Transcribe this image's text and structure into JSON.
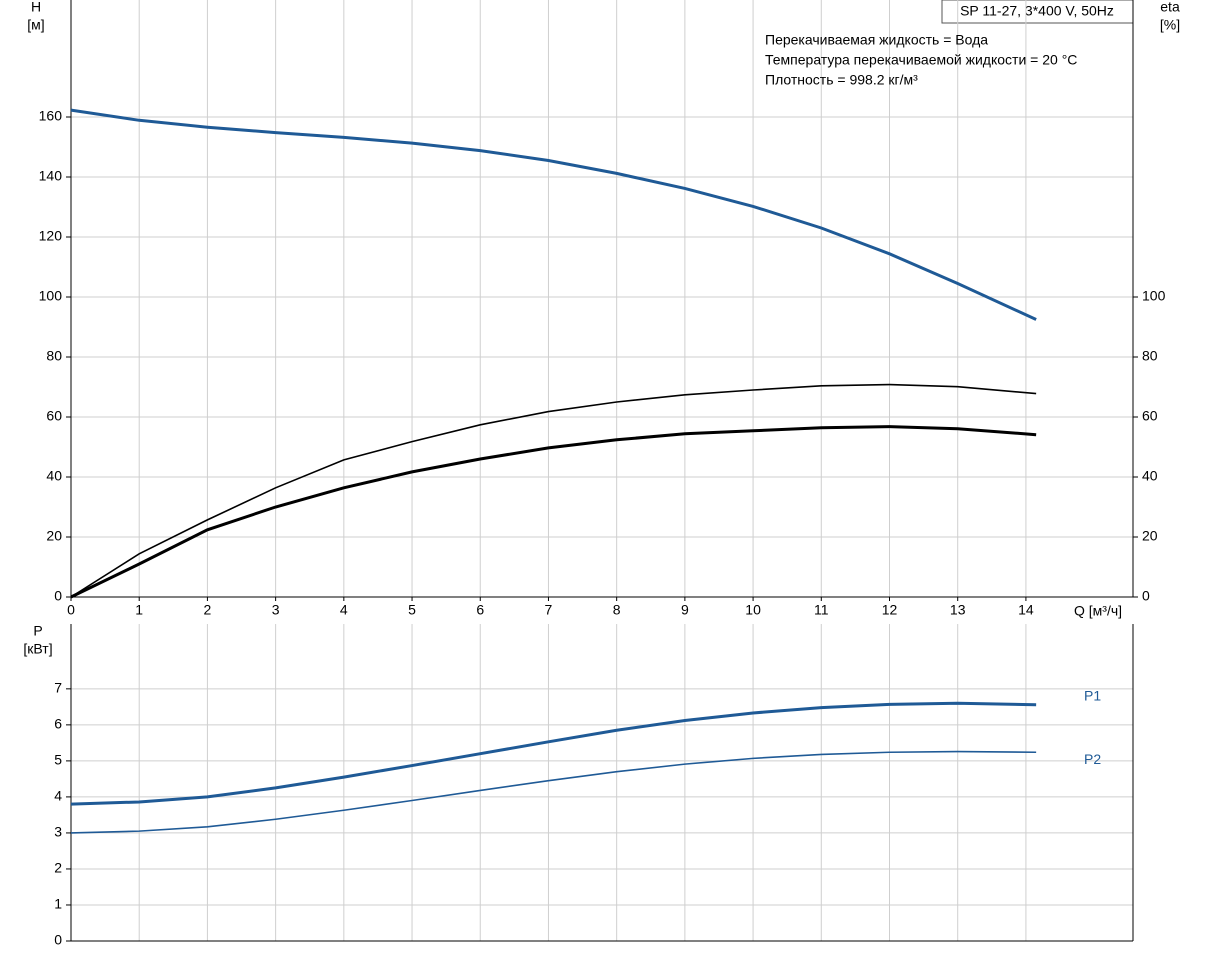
{
  "chart_data": [
    {
      "type": "line",
      "y_label": "H",
      "y_unit": "[м]",
      "y2_label": "eta",
      "y2_unit": "[%]",
      "x_label": "Q [м³/ч]",
      "title": "SP 11-27, 3*400 V, 50Hz",
      "annotations": [
        "Перекачиваемая жидкость = Вода",
        "Температура перекачиваемой жидкости = 20 °C",
        "Плотность = 998.2 кг/м³"
      ],
      "xlim": [
        0,
        15.57
      ],
      "xticks": [
        0,
        1,
        2,
        3,
        4,
        5,
        6,
        7,
        8,
        9,
        10,
        11,
        12,
        13,
        14
      ],
      "ylim": [
        0,
        199
      ],
      "yticks": [
        0,
        20,
        40,
        60,
        80,
        100,
        120,
        140,
        160
      ],
      "y2lim": [
        0,
        199
      ],
      "y2ticks": [
        0,
        20,
        40,
        60,
        80,
        100
      ],
      "grid": true,
      "series": [
        {
          "color": "#1f5a96",
          "line_width": 3,
          "x": [
            0,
            1,
            2,
            3,
            4,
            5,
            6,
            7,
            8,
            9,
            10,
            11,
            12,
            13,
            14.15
          ],
          "values": [
            162.3,
            158.9,
            156.6,
            154.8,
            153.2,
            151.3,
            148.8,
            145.5,
            141.2,
            136.2,
            130.2,
            123,
            114.4,
            104.5,
            92.5
          ]
        },
        {
          "color": "#000000",
          "line_width": 1.6,
          "axis": "y2",
          "x": [
            0,
            1,
            2,
            3,
            4,
            5,
            6,
            7,
            8,
            9,
            10,
            11,
            12,
            13,
            14.15
          ],
          "values": [
            0,
            14.4,
            25.7,
            36.4,
            45.7,
            51.8,
            57.4,
            61.8,
            65,
            67.4,
            69,
            70.4,
            70.8,
            70.1,
            67.8
          ]
        },
        {
          "color": "#000000",
          "line_width": 3,
          "axis": "y2",
          "x": [
            0,
            1,
            2,
            3,
            4,
            5,
            6,
            7,
            8,
            9,
            10,
            11,
            12,
            13,
            14.15
          ],
          "values": [
            0,
            11,
            22.4,
            30,
            36.4,
            41.7,
            46,
            49.7,
            52.4,
            54.4,
            55.4,
            56.4,
            56.8,
            56.1,
            54.1
          ]
        }
      ]
    },
    {
      "type": "line",
      "y_label": "P",
      "y_unit": "[кВт]",
      "xlim": [
        0,
        15.57
      ],
      "ylim": [
        0,
        8.8
      ],
      "yticks": [
        0,
        1,
        2,
        3,
        4,
        5,
        6,
        7
      ],
      "grid": true,
      "series": [
        {
          "name": "P1",
          "color": "#1f5a96",
          "line_width": 3,
          "x": [
            0,
            1,
            2,
            3,
            4,
            5,
            6,
            7,
            8,
            9,
            10,
            11,
            12,
            13,
            14.15
          ],
          "values": [
            3.8,
            3.86,
            4.0,
            4.25,
            4.55,
            4.87,
            5.2,
            5.53,
            5.85,
            6.12,
            6.33,
            6.48,
            6.57,
            6.6,
            6.56
          ]
        },
        {
          "name": "P2",
          "color": "#1f5a96",
          "line_width": 1.6,
          "x": [
            0,
            1,
            2,
            3,
            4,
            5,
            6,
            7,
            8,
            9,
            10,
            11,
            12,
            13,
            14.15
          ],
          "values": [
            3.0,
            3.05,
            3.17,
            3.38,
            3.63,
            3.9,
            4.18,
            4.45,
            4.7,
            4.91,
            5.07,
            5.18,
            5.24,
            5.26,
            5.24
          ]
        }
      ]
    }
  ]
}
